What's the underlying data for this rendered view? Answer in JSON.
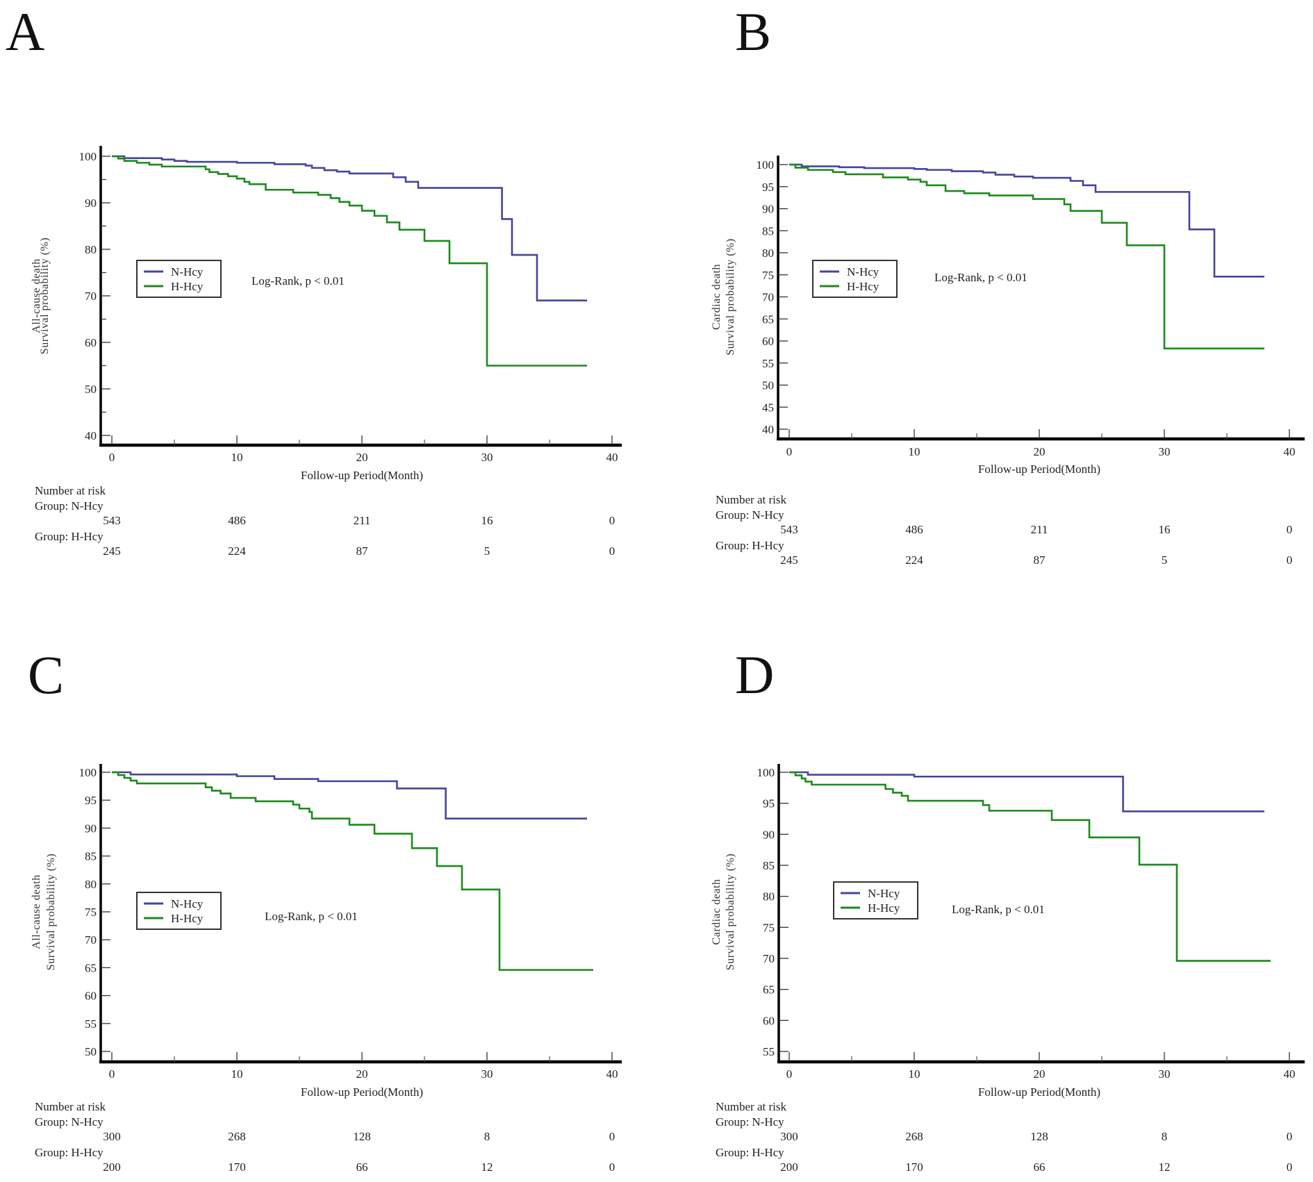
{
  "figure": {
    "colors": {
      "N-Hcy": "#45459c",
      "H-Hcy": "#1c8a1c",
      "axis": "#000000"
    }
  },
  "chart_data": [
    {
      "panel": "A",
      "type": "line",
      "step": true,
      "ylabel_line1": "All-cause death",
      "ylabel_line2": "Survival probability (%)",
      "xlabel": "Follow-up Period(Month)",
      "xlim": [
        0,
        40
      ],
      "ylim": [
        40,
        100
      ],
      "xticks": [
        0,
        10,
        20,
        30,
        40
      ],
      "xminor": [
        5,
        15,
        25,
        35
      ],
      "yticks": [
        40,
        50,
        60,
        70,
        80,
        90,
        100
      ],
      "yminor": [
        45,
        55,
        65,
        75,
        85,
        95
      ],
      "legend": [
        "N-Hcy",
        "H-Hcy"
      ],
      "annotation": "Log-Rank, p  < 0.01",
      "series": [
        {
          "name": "N-Hcy",
          "points": [
            [
              0,
              100
            ],
            [
              1,
              99.6
            ],
            [
              4,
              99.3
            ],
            [
              5,
              99.0
            ],
            [
              6,
              98.8
            ],
            [
              10,
              98.6
            ],
            [
              13,
              98.3
            ],
            [
              15.5,
              98.0
            ],
            [
              16,
              97.5
            ],
            [
              17,
              97.0
            ],
            [
              18,
              96.7
            ],
            [
              19,
              96.3
            ],
            [
              22.5,
              95.5
            ],
            [
              23.5,
              94.5
            ],
            [
              24.5,
              93.2
            ],
            [
              31.2,
              86.5
            ],
            [
              32,
              78.8
            ],
            [
              34,
              69.0
            ],
            [
              38,
              69.0
            ]
          ]
        },
        {
          "name": "H-Hcy",
          "points": [
            [
              0,
              100
            ],
            [
              0.5,
              99.5
            ],
            [
              1,
              99.0
            ],
            [
              2,
              98.6
            ],
            [
              3,
              98.2
            ],
            [
              4,
              97.8
            ],
            [
              7.5,
              97.2
            ],
            [
              7.8,
              96.6
            ],
            [
              8.5,
              96.2
            ],
            [
              9.3,
              95.7
            ],
            [
              10,
              95.2
            ],
            [
              10.6,
              94.5
            ],
            [
              11,
              94.0
            ],
            [
              12.3,
              92.8
            ],
            [
              14.5,
              92.2
            ],
            [
              16.5,
              91.7
            ],
            [
              17.5,
              91.0
            ],
            [
              18.2,
              90.2
            ],
            [
              19,
              89.4
            ],
            [
              20,
              88.3
            ],
            [
              21,
              87.2
            ],
            [
              22,
              85.8
            ],
            [
              23,
              84.2
            ],
            [
              25,
              81.8
            ],
            [
              27,
              77.0
            ],
            [
              30,
              55.0
            ],
            [
              38,
              55.0
            ]
          ]
        }
      ],
      "risk_table": {
        "title": "Number at risk",
        "groups": [
          {
            "label": "Group: N-Hcy",
            "values": [
              "543",
              "486",
              "211",
              "16",
              "0"
            ]
          },
          {
            "label": "Group: H-Hcy",
            "values": [
              "245",
              "224",
              "87",
              "5",
              "0"
            ]
          }
        ]
      }
    },
    {
      "panel": "B",
      "type": "line",
      "step": true,
      "ylabel_line1": "Cardiac death",
      "ylabel_line2": "Survival probability (%)",
      "xlabel": "Follow-up Period(Month)",
      "xlim": [
        0,
        40
      ],
      "ylim": [
        40,
        100
      ],
      "xticks": [
        0,
        10,
        20,
        30,
        40
      ],
      "xminor": [
        5,
        15,
        25,
        35
      ],
      "yticks": [
        40,
        45,
        50,
        55,
        60,
        65,
        70,
        75,
        80,
        85,
        90,
        95,
        100
      ],
      "yminor": [],
      "legend": [
        "N-Hcy",
        "H-Hcy"
      ],
      "annotation": "Log-Rank, p  < 0.01",
      "series": [
        {
          "name": "N-Hcy",
          "points": [
            [
              0,
              100
            ],
            [
              1,
              99.6
            ],
            [
              4,
              99.4
            ],
            [
              6,
              99.2
            ],
            [
              10,
              99.0
            ],
            [
              11,
              98.8
            ],
            [
              13,
              98.5
            ],
            [
              15.5,
              98.2
            ],
            [
              16.5,
              97.7
            ],
            [
              18,
              97.3
            ],
            [
              19.5,
              97.0
            ],
            [
              22.5,
              96.3
            ],
            [
              23.5,
              95.3
            ],
            [
              24.5,
              93.8
            ],
            [
              32,
              85.3
            ],
            [
              34,
              74.6
            ],
            [
              38,
              74.6
            ]
          ]
        },
        {
          "name": "H-Hcy",
          "points": [
            [
              0,
              100
            ],
            [
              0.5,
              99.3
            ],
            [
              1.5,
              98.8
            ],
            [
              3.5,
              98.3
            ],
            [
              4.5,
              97.8
            ],
            [
              7.5,
              97.1
            ],
            [
              9.5,
              96.6
            ],
            [
              10.5,
              96.1
            ],
            [
              11,
              95.3
            ],
            [
              12.5,
              94.0
            ],
            [
              14,
              93.5
            ],
            [
              16,
              93.0
            ],
            [
              19.5,
              92.2
            ],
            [
              22,
              91.0
            ],
            [
              22.5,
              89.5
            ],
            [
              25,
              86.8
            ],
            [
              27,
              81.7
            ],
            [
              30,
              58.3
            ],
            [
              38,
              58.3
            ]
          ]
        }
      ],
      "risk_table": {
        "title": "Number at risk",
        "groups": [
          {
            "label": "Group: N-Hcy",
            "values": [
              "543",
              "486",
              "211",
              "16",
              "0"
            ]
          },
          {
            "label": "Group: H-Hcy",
            "values": [
              "245",
              "224",
              "87",
              "5",
              "0"
            ]
          }
        ]
      }
    },
    {
      "panel": "C",
      "type": "line",
      "step": true,
      "ylabel_line1": "All-cause death",
      "ylabel_line2": "Survival probability (%)",
      "xlabel": "Follow-up Period(Month)",
      "xlim": [
        0,
        40
      ],
      "ylim": [
        50,
        100
      ],
      "xticks": [
        0,
        10,
        20,
        30,
        40
      ],
      "xminor": [
        5,
        15,
        25,
        35
      ],
      "yticks": [
        50,
        55,
        60,
        65,
        70,
        75,
        80,
        85,
        90,
        95,
        100
      ],
      "yminor": [],
      "legend": [
        "N-Hcy",
        "H-Hcy"
      ],
      "annotation": "Log-Rank, p  < 0.01",
      "series": [
        {
          "name": "N-Hcy",
          "points": [
            [
              0,
              100
            ],
            [
              1.5,
              99.6
            ],
            [
              10,
              99.3
            ],
            [
              13,
              98.8
            ],
            [
              16.5,
              98.4
            ],
            [
              22.8,
              97.1
            ],
            [
              26.7,
              91.7
            ],
            [
              38,
              91.7
            ]
          ]
        },
        {
          "name": "H-Hcy",
          "points": [
            [
              0,
              100
            ],
            [
              0.5,
              99.5
            ],
            [
              1,
              99.0
            ],
            [
              1.5,
              98.5
            ],
            [
              2,
              98.0
            ],
            [
              7.5,
              97.3
            ],
            [
              8,
              96.7
            ],
            [
              8.7,
              96.2
            ],
            [
              9.5,
              95.4
            ],
            [
              11.5,
              94.8
            ],
            [
              14.5,
              94.2
            ],
            [
              15,
              93.5
            ],
            [
              15.8,
              92.9
            ],
            [
              16,
              91.7
            ],
            [
              19,
              90.6
            ],
            [
              21,
              89.0
            ],
            [
              24,
              86.4
            ],
            [
              26,
              83.2
            ],
            [
              28,
              79.0
            ],
            [
              31,
              64.6
            ],
            [
              38.5,
              64.6
            ]
          ]
        }
      ],
      "risk_table": {
        "title": "Number at risk",
        "groups": [
          {
            "label": "Group: N-Hcy",
            "values": [
              "300",
              "268",
              "128",
              "8",
              "0"
            ]
          },
          {
            "label": "Group: H-Hcy",
            "values": [
              "200",
              "170",
              "66",
              "12",
              "0"
            ]
          }
        ]
      }
    },
    {
      "panel": "D",
      "type": "line",
      "step": true,
      "ylabel_line1": "Cardiac death",
      "ylabel_line2": "Survival probability (%)",
      "xlabel": "Follow-up Period(Month)",
      "xlim": [
        0,
        40
      ],
      "ylim": [
        55,
        100
      ],
      "xticks": [
        0,
        10,
        20,
        30,
        40
      ],
      "xminor": [
        5,
        15,
        25,
        35
      ],
      "yticks": [
        55,
        60,
        65,
        70,
        75,
        80,
        85,
        90,
        95,
        100
      ],
      "yminor": [],
      "legend": [
        "N-Hcy",
        "H-Hcy"
      ],
      "annotation": "Log-Rank, p  < 0.01",
      "series": [
        {
          "name": "N-Hcy",
          "points": [
            [
              0,
              100
            ],
            [
              1.5,
              99.6
            ],
            [
              10,
              99.3
            ],
            [
              26.7,
              93.7
            ],
            [
              38,
              93.7
            ]
          ]
        },
        {
          "name": "H-Hcy",
          "points": [
            [
              0,
              100
            ],
            [
              0.5,
              99.5
            ],
            [
              1,
              99.0
            ],
            [
              1.3,
              98.5
            ],
            [
              1.8,
              98.0
            ],
            [
              7.7,
              97.3
            ],
            [
              8.3,
              96.7
            ],
            [
              9,
              96.2
            ],
            [
              9.5,
              95.4
            ],
            [
              15.5,
              94.7
            ],
            [
              16,
              93.8
            ],
            [
              21,
              92.3
            ],
            [
              24,
              89.5
            ],
            [
              28,
              85.1
            ],
            [
              31,
              69.6
            ],
            [
              38.5,
              69.6
            ]
          ]
        }
      ],
      "risk_table": {
        "title": "Number at risk",
        "groups": [
          {
            "label": "Group: N-Hcy",
            "values": [
              "300",
              "268",
              "128",
              "8",
              "0"
            ]
          },
          {
            "label": "Group: H-Hcy",
            "values": [
              "200",
              "170",
              "66",
              "12",
              "0"
            ]
          }
        ]
      }
    }
  ]
}
